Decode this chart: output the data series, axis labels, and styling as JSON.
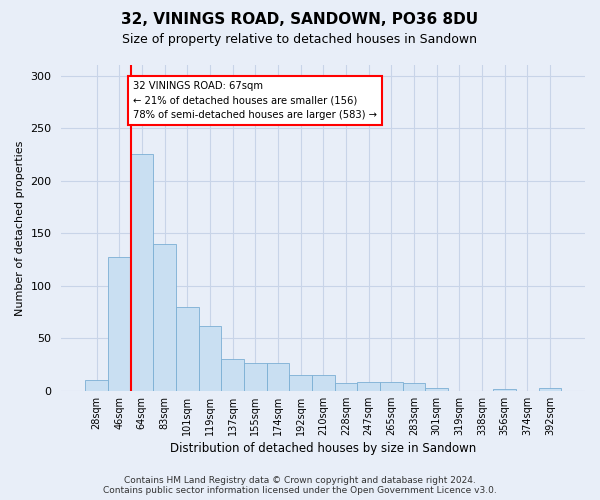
{
  "title": "32, VININGS ROAD, SANDOWN, PO36 8DU",
  "subtitle": "Size of property relative to detached houses in Sandown",
  "xlabel": "Distribution of detached houses by size in Sandown",
  "ylabel": "Number of detached properties",
  "categories": [
    "28sqm",
    "46sqm",
    "64sqm",
    "83sqm",
    "101sqm",
    "119sqm",
    "137sqm",
    "155sqm",
    "174sqm",
    "192sqm",
    "210sqm",
    "228sqm",
    "247sqm",
    "265sqm",
    "283sqm",
    "301sqm",
    "319sqm",
    "338sqm",
    "356sqm",
    "374sqm",
    "392sqm"
  ],
  "values": [
    10,
    127,
    225,
    140,
    80,
    62,
    30,
    26,
    26,
    15,
    15,
    7,
    8,
    8,
    7,
    3,
    0,
    0,
    2,
    0,
    3
  ],
  "bar_color": "#c9dff2",
  "bar_edge_color": "#7bafd4",
  "grid_color": "#c8d4e8",
  "background_color": "#e8eef8",
  "vline_color": "red",
  "annotation_text": "32 VININGS ROAD: 67sqm\n← 21% of detached houses are smaller (156)\n78% of semi-detached houses are larger (583) →",
  "annotation_box_color": "white",
  "annotation_box_edge_color": "red",
  "footer_text": "Contains HM Land Registry data © Crown copyright and database right 2024.\nContains public sector information licensed under the Open Government Licence v3.0.",
  "ylim": [
    0,
    310
  ],
  "yticks": [
    0,
    50,
    100,
    150,
    200,
    250,
    300
  ]
}
